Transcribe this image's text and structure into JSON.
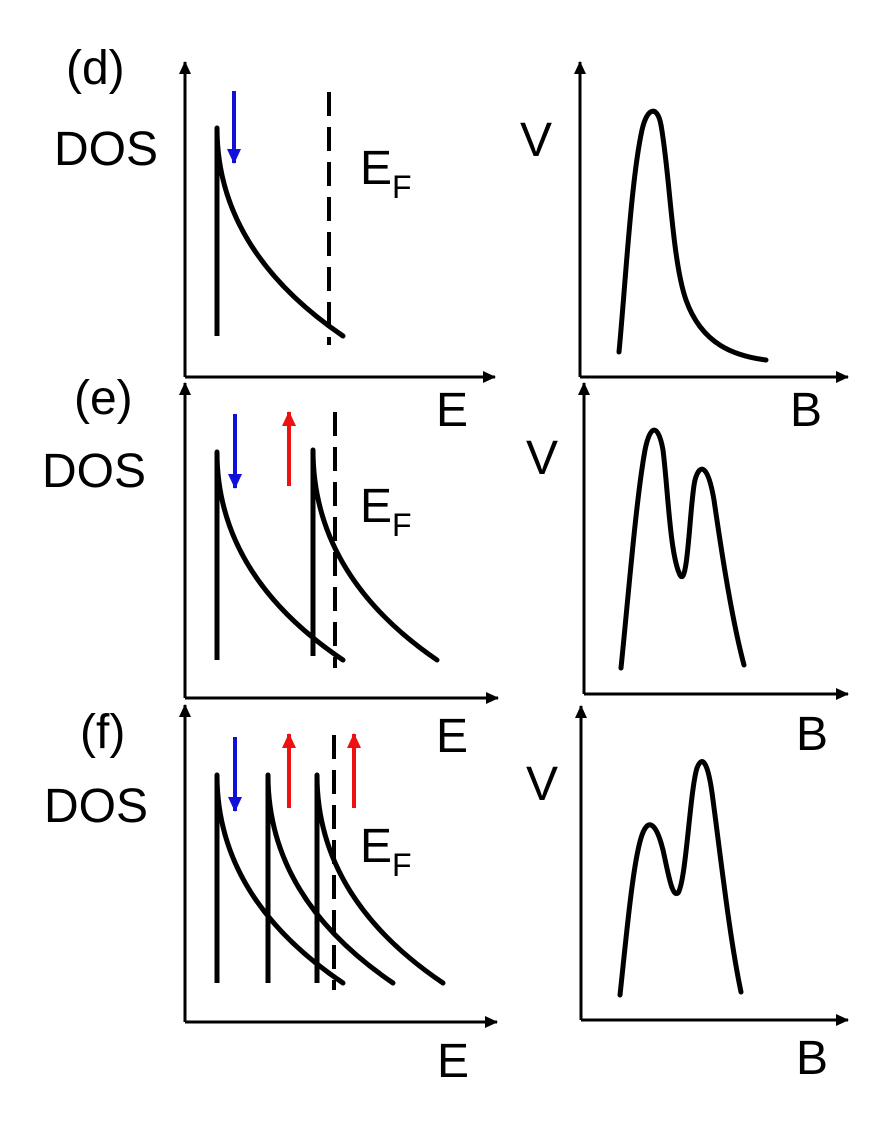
{
  "panels": [
    {
      "id": "d",
      "label": "(d)",
      "dos_ylabel": "DOS",
      "dos_xlabel": "E",
      "fermi_label": "E",
      "fermi_sub": "F",
      "v_ylabel": "V",
      "v_xlabel": "B",
      "spin_arrows": [
        {
          "direction": "down",
          "color": "#1010d8"
        }
      ],
      "v_peaks": 1
    },
    {
      "id": "e",
      "label": "(e)",
      "dos_ylabel": "DOS",
      "dos_xlabel": "E",
      "fermi_label": "E",
      "fermi_sub": "F",
      "v_ylabel": "V",
      "v_xlabel": "B",
      "spin_arrows": [
        {
          "direction": "down",
          "color": "#1010d8"
        },
        {
          "direction": "up",
          "color": "#ee1111"
        }
      ],
      "v_peaks": 2
    },
    {
      "id": "f",
      "label": "(f)",
      "dos_ylabel": "DOS",
      "dos_xlabel": "E",
      "fermi_label": "E",
      "fermi_sub": "F",
      "v_ylabel": "V",
      "v_xlabel": "B",
      "spin_arrows": [
        {
          "direction": "down",
          "color": "#1010d8"
        },
        {
          "direction": "up",
          "color": "#ee1111"
        },
        {
          "direction": "up",
          "color": "#ee1111"
        }
      ],
      "v_peaks": 2
    }
  ]
}
